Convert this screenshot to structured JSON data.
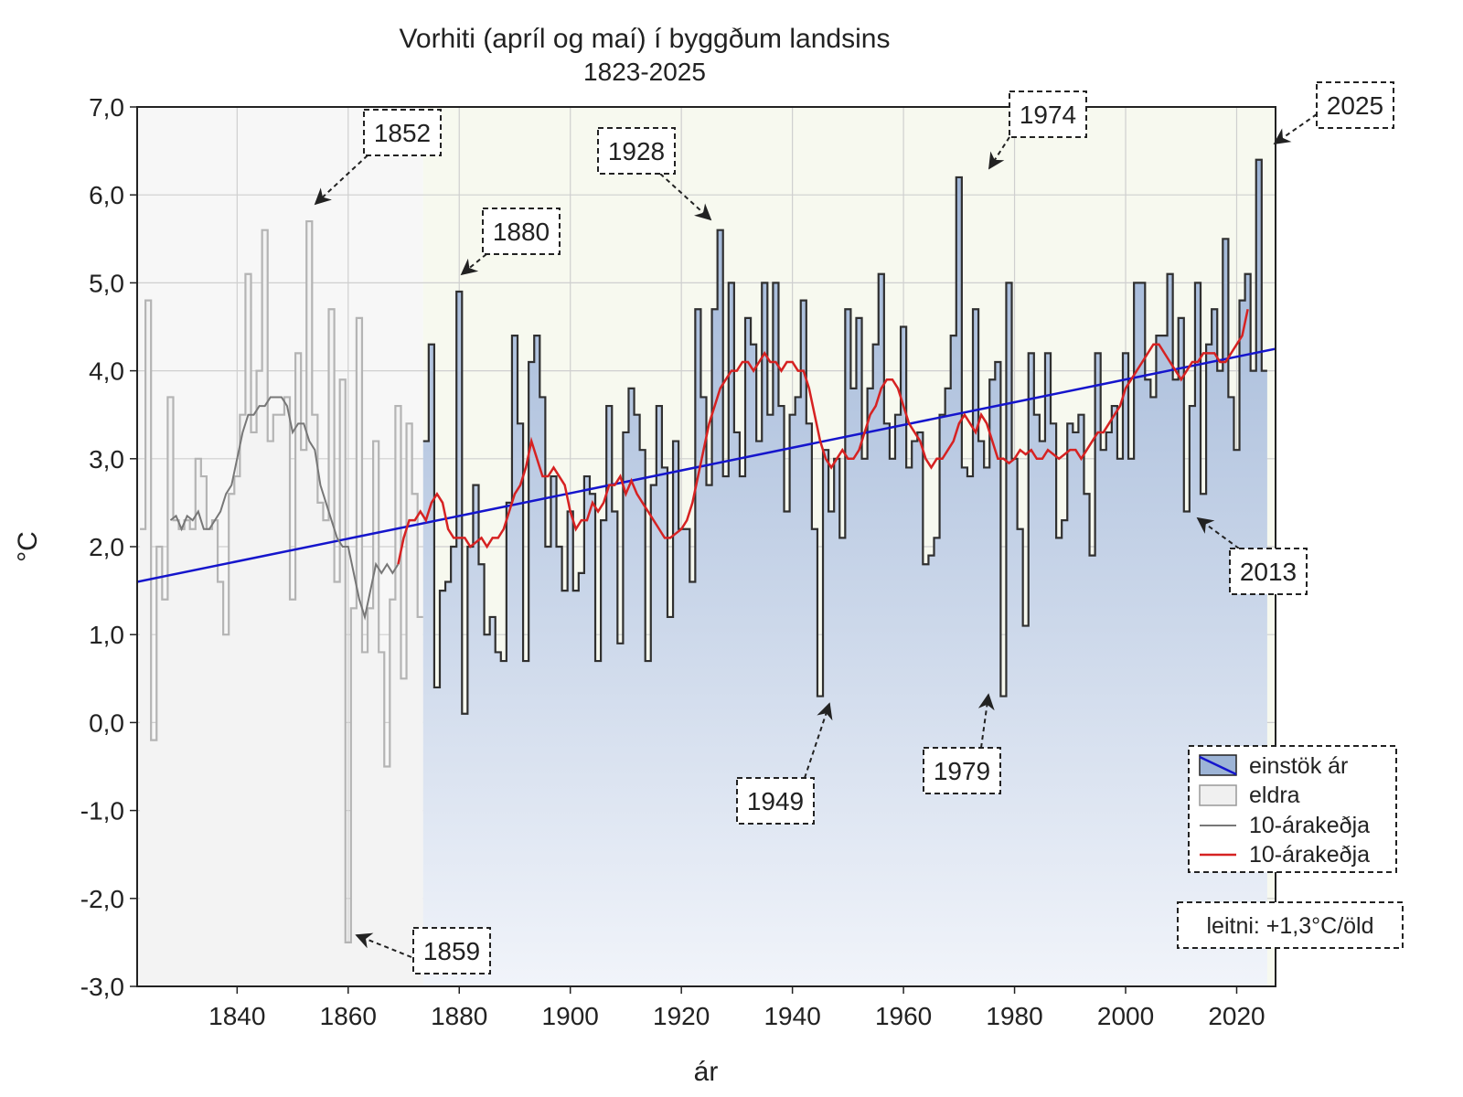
{
  "chart_data": {
    "type": "bar",
    "title": "Vorhiti (apríl og maí) í byggðum landsins",
    "subtitle": "1823-2025",
    "xlabel": "ár",
    "ylabel": "°C",
    "xlim": [
      1822,
      2027
    ],
    "ylim": [
      -3.0,
      7.0
    ],
    "x_ticks": [
      1840,
      1860,
      1880,
      1900,
      1920,
      1940,
      1960,
      1980,
      2000,
      2020
    ],
    "x_tick_labels": [
      "1840",
      "1860",
      "1880",
      "1900",
      "1920",
      "1940",
      "1960",
      "1980",
      "2000",
      "2020"
    ],
    "y_ticks": [
      7,
      6,
      5,
      4,
      3,
      2,
      1,
      0,
      -1,
      -2,
      -3
    ],
    "y_tick_labels": [
      "7,0",
      "6,0",
      "5,0",
      "4,0",
      "3,0",
      "2,0",
      "1,0",
      "0,0",
      "-1,0",
      "-2,0",
      "-3,0"
    ],
    "grid": true,
    "older_period_end": 1873,
    "series": [
      {
        "name": "einstök ár",
        "color_fill": "#b8cce4",
        "color_edge": "#2b2b2b",
        "start_year": 1823,
        "values": [
          2.2,
          4.8,
          -0.2,
          2.0,
          1.4,
          3.7,
          2.3,
          2.2,
          2.3,
          2.2,
          3.0,
          2.8,
          2.2,
          2.3,
          1.6,
          1.0,
          2.6,
          2.8,
          3.5,
          5.1,
          3.3,
          4.0,
          5.6,
          3.2,
          3.5,
          3.5,
          3.7,
          1.4,
          4.2,
          3.1,
          5.7,
          3.5,
          2.5,
          2.3,
          4.7,
          1.6,
          3.9,
          -2.5,
          1.3,
          4.6,
          0.8,
          1.3,
          3.2,
          0.8,
          -0.5,
          1.4,
          3.6,
          0.5,
          3.4,
          2.6,
          1.2,
          3.2,
          4.3,
          0.4,
          1.5,
          1.6,
          2.0,
          4.9,
          0.1,
          2.0,
          2.7,
          1.8,
          1.0,
          1.2,
          0.8,
          0.7,
          2.5,
          4.4,
          3.4,
          0.7,
          4.1,
          4.4,
          3.7,
          2.0,
          2.8,
          2.0,
          1.5,
          2.4,
          1.5,
          1.7,
          2.8,
          2.6,
          0.7,
          2.3,
          3.6,
          2.4,
          0.9,
          3.3,
          3.8,
          3.5,
          3.1,
          0.7,
          2.7,
          3.6,
          2.9,
          1.2,
          3.2,
          2.2,
          2.2,
          1.6,
          4.7,
          3.7,
          2.7,
          4.7,
          5.6,
          2.8,
          5.0,
          3.3,
          2.8,
          4.6,
          4.3,
          3.2,
          5.0,
          3.5,
          5.0,
          3.6,
          2.4,
          3.5,
          3.7,
          4.8,
          3.4,
          2.2,
          0.3,
          3.1,
          2.4,
          3.0,
          2.1,
          4.7,
          3.8,
          4.6,
          3.0,
          3.8,
          4.3,
          5.1,
          3.4,
          3.0,
          3.5,
          4.5,
          2.9,
          3.2,
          3.3,
          1.8,
          1.9,
          2.1,
          3.5,
          3.8,
          4.4,
          6.2,
          2.9,
          2.8,
          4.7,
          3.2,
          2.9,
          3.9,
          4.1,
          0.3,
          5.0,
          3.0,
          2.2,
          1.1,
          4.2,
          3.5,
          3.2,
          4.2,
          3.4,
          2.1,
          2.3,
          3.4,
          3.3,
          3.5,
          2.6,
          1.9,
          4.2,
          3.1,
          3.3,
          3.6,
          3.0,
          4.2,
          3.0,
          5.0,
          5.0,
          3.9,
          3.7,
          4.4,
          4.4,
          5.1,
          3.9,
          4.6,
          2.4,
          3.6,
          5.0,
          2.6,
          4.3,
          4.7,
          4.0,
          5.5,
          3.7,
          3.1,
          4.8,
          5.1,
          4.0,
          6.4,
          4.0
        ]
      },
      {
        "name": "eldra",
        "color": "#aaaaaa"
      },
      {
        "name": "10-árakeðja",
        "color": "#777777",
        "x": [
          1828,
          1829,
          1830,
          1831,
          1832,
          1833,
          1834,
          1835,
          1836,
          1837,
          1838,
          1839,
          1840,
          1841,
          1842,
          1843,
          1844,
          1845,
          1846,
          1847,
          1848,
          1849,
          1850,
          1851,
          1852,
          1853,
          1854,
          1855,
          1856,
          1857,
          1858,
          1859,
          1860,
          1861,
          1862,
          1863,
          1864,
          1865,
          1866,
          1867,
          1868,
          1869
        ],
        "values": [
          2.3,
          2.35,
          2.2,
          2.35,
          2.3,
          2.4,
          2.2,
          2.2,
          2.3,
          2.4,
          2.6,
          2.7,
          3.0,
          3.3,
          3.5,
          3.5,
          3.6,
          3.6,
          3.7,
          3.7,
          3.7,
          3.6,
          3.3,
          3.4,
          3.4,
          3.2,
          3.1,
          2.7,
          2.5,
          2.3,
          2.1,
          2.0,
          2.0,
          1.7,
          1.4,
          1.2,
          1.5,
          1.8,
          1.7,
          1.8,
          1.7,
          1.8
        ]
      },
      {
        "name": "10-árakeðja",
        "color": "#d62222",
        "x": [
          1869,
          1870,
          1871,
          1872,
          1873,
          1874,
          1875,
          1876,
          1877,
          1878,
          1879,
          1880,
          1881,
          1882,
          1883,
          1884,
          1885,
          1886,
          1887,
          1888,
          1889,
          1890,
          1891,
          1892,
          1893,
          1894,
          1895,
          1896,
          1897,
          1898,
          1899,
          1900,
          1901,
          1902,
          1903,
          1904,
          1905,
          1906,
          1907,
          1908,
          1909,
          1910,
          1911,
          1912,
          1913,
          1914,
          1915,
          1916,
          1917,
          1918,
          1919,
          1920,
          1921,
          1922,
          1923,
          1924,
          1925,
          1926,
          1927,
          1928,
          1929,
          1930,
          1931,
          1932,
          1933,
          1934,
          1935,
          1936,
          1937,
          1938,
          1939,
          1940,
          1941,
          1942,
          1943,
          1944,
          1945,
          1946,
          1947,
          1948,
          1949,
          1950,
          1951,
          1952,
          1953,
          1954,
          1955,
          1956,
          1957,
          1958,
          1959,
          1960,
          1961,
          1962,
          1963,
          1964,
          1965,
          1966,
          1967,
          1968,
          1969,
          1970,
          1971,
          1972,
          1973,
          1974,
          1975,
          1976,
          1977,
          1978,
          1979,
          1980,
          1981,
          1982,
          1983,
          1984,
          1985,
          1986,
          1987,
          1988,
          1989,
          1990,
          1991,
          1992,
          1993,
          1994,
          1995,
          1996,
          1997,
          1998,
          1999,
          2000,
          2001,
          2002,
          2003,
          2004,
          2005,
          2006,
          2007,
          2008,
          2009,
          2010,
          2011,
          2012,
          2013,
          2014,
          2015,
          2016,
          2017,
          2018,
          2019,
          2020,
          2021,
          2022
        ],
        "values": [
          1.8,
          2.1,
          2.3,
          2.3,
          2.4,
          2.3,
          2.5,
          2.6,
          2.5,
          2.2,
          2.1,
          2.1,
          2.1,
          2.0,
          2.05,
          2.1,
          2.0,
          2.1,
          2.1,
          2.2,
          2.4,
          2.6,
          2.7,
          2.9,
          3.2,
          3.0,
          2.8,
          2.8,
          2.9,
          2.8,
          2.7,
          2.4,
          2.2,
          2.3,
          2.3,
          2.5,
          2.4,
          2.5,
          2.7,
          2.7,
          2.8,
          2.6,
          2.75,
          2.6,
          2.5,
          2.4,
          2.3,
          2.2,
          2.1,
          2.1,
          2.15,
          2.2,
          2.3,
          2.5,
          2.8,
          3.1,
          3.4,
          3.6,
          3.8,
          3.9,
          4.0,
          4.0,
          4.1,
          4.1,
          4.0,
          4.1,
          4.2,
          4.1,
          4.1,
          4.0,
          4.1,
          4.1,
          4.0,
          4.0,
          3.8,
          3.5,
          3.2,
          3.0,
          2.9,
          3.0,
          3.1,
          3.0,
          3.0,
          3.1,
          3.3,
          3.5,
          3.6,
          3.8,
          3.9,
          3.9,
          3.8,
          3.6,
          3.4,
          3.3,
          3.2,
          3.0,
          2.9,
          3.0,
          3.0,
          3.1,
          3.2,
          3.4,
          3.5,
          3.4,
          3.3,
          3.5,
          3.4,
          3.2,
          3.0,
          3.0,
          2.95,
          3.0,
          3.1,
          3.05,
          3.1,
          3.0,
          3.0,
          3.1,
          3.05,
          3.0,
          3.05,
          3.1,
          3.1,
          3.0,
          3.1,
          3.2,
          3.3,
          3.3,
          3.4,
          3.5,
          3.6,
          3.8,
          3.9,
          4.0,
          4.1,
          4.2,
          4.3,
          4.3,
          4.2,
          4.1,
          4.0,
          3.9,
          4.0,
          4.1,
          4.1,
          4.2,
          4.2,
          4.2,
          4.1,
          4.1,
          4.2,
          4.3,
          4.4,
          4.7
        ]
      },
      {
        "name": "leitni",
        "color": "#1515cc",
        "x": [
          1822,
          2027
        ],
        "values": [
          1.6,
          4.25
        ]
      }
    ],
    "annotations": [
      {
        "label": "1852",
        "year": 1852
      },
      {
        "label": "1880",
        "year": 1880
      },
      {
        "label": "1928",
        "year": 1928
      },
      {
        "label": "1974",
        "year": 1974
      },
      {
        "label": "2025",
        "year": 2025
      },
      {
        "label": "1859",
        "year": 1859
      },
      {
        "label": "1949",
        "year": 1949
      },
      {
        "label": "1979",
        "year": 1979
      },
      {
        "label": "2013",
        "year": 2013
      }
    ],
    "legend": {
      "position": "bottom-right",
      "items": [
        "einstök ár",
        "eldra",
        "10-árakeðja",
        "10-árakeðja"
      ]
    },
    "trend_label": "leitni: +1,3°C/öld",
    "colors": {
      "plot_background": "#f7f9ef",
      "bar_fill_top": "#9db4d6",
      "bar_fill_bottom": "#eef2f9",
      "older_fill": "#f7f7f7",
      "grid": "#c8c8c8",
      "trend": "#1515cc",
      "running_mean": "#d62222",
      "older_mean": "#777777"
    }
  }
}
